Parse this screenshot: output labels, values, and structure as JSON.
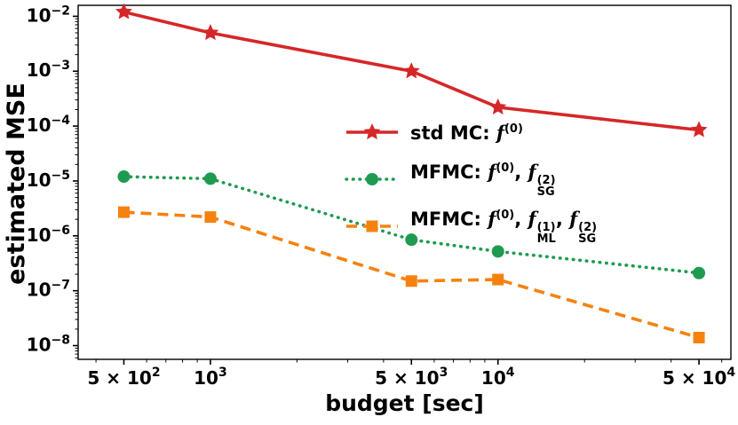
{
  "chart_data": {
    "type": "line",
    "x_scale": "log",
    "y_scale": "log",
    "xlabel": "budget [sec]",
    "ylabel": "estimated MSE",
    "grid": false,
    "legend_position": "center-right inside, no frame",
    "x": [
      500,
      1000,
      5000,
      10000,
      50000
    ],
    "series": [
      {
        "id": "std-mc",
        "name": "std MC: f^(0)",
        "color": "#d62728",
        "linestyle": "solid",
        "marker": "star",
        "values": [
          0.012,
          0.005,
          0.001,
          0.00022,
          8.5e-05
        ]
      },
      {
        "id": "mfmc-2model",
        "name": "MFMC: f^(0), f_SG^(2)",
        "color": "#1e9b50",
        "linestyle": "dotted",
        "marker": "circle",
        "values": [
          1.2e-05,
          1.1e-05,
          8.5e-07,
          5.2e-07,
          2.1e-07
        ]
      },
      {
        "id": "mfmc-3model",
        "name": "MFMC: f^(0), f_ML^(1), f_SG^(2)",
        "color": "#f5820f",
        "linestyle": "dashed",
        "marker": "square",
        "values": [
          2.7e-06,
          2.2e-06,
          1.5e-07,
          1.6e-07,
          1.4e-08
        ]
      }
    ],
    "xlim_log10": [
      2.54,
      4.81
    ],
    "ylim_log10": [
      -8.25,
      -1.8
    ],
    "x_tick_values": [
      500,
      1000,
      5000,
      10000,
      50000
    ],
    "x_ticks": [
      {
        "coef": "5",
        "exp": "2"
      },
      {
        "coef": null,
        "exp": "3"
      },
      {
        "coef": "5",
        "exp": "3"
      },
      {
        "coef": null,
        "exp": "4"
      },
      {
        "coef": "5",
        "exp": "4"
      }
    ],
    "y_tick_exps": [
      -2,
      -3,
      -4,
      -5,
      -6,
      -7,
      -8
    ]
  },
  "legend": {
    "entries": [
      {
        "series": "std-mc",
        "parts": [
          {
            "t": "text",
            "v": "std MC: "
          },
          {
            "t": "var",
            "v": "f"
          },
          {
            "t": "sup",
            "v": "(0)"
          }
        ]
      },
      {
        "series": "mfmc-2model",
        "parts": [
          {
            "t": "text",
            "v": "MFMC: "
          },
          {
            "t": "var",
            "v": "f"
          },
          {
            "t": "sup",
            "v": "(0)"
          },
          {
            "t": "text",
            "v": ", "
          },
          {
            "t": "var",
            "v": "f"
          },
          {
            "t": "subsup",
            "sup": "(2)",
            "sub": "SG"
          }
        ]
      },
      {
        "series": "mfmc-3model",
        "parts": [
          {
            "t": "text",
            "v": "MFMC: "
          },
          {
            "t": "var",
            "v": "f"
          },
          {
            "t": "sup",
            "v": "(0)"
          },
          {
            "t": "text",
            "v": ", "
          },
          {
            "t": "var",
            "v": "f"
          },
          {
            "t": "subsup",
            "sup": "(1)",
            "sub": "ML"
          },
          {
            "t": "text",
            "v": ", "
          },
          {
            "t": "var",
            "v": "f"
          },
          {
            "t": "subsup",
            "sup": "(2)",
            "sub": "SG"
          }
        ]
      }
    ]
  }
}
